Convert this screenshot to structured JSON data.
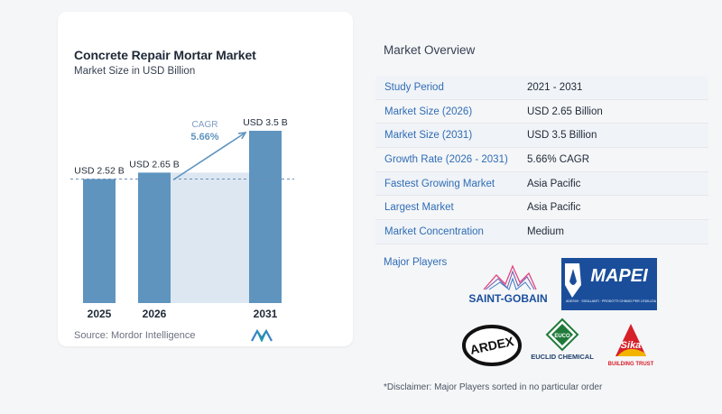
{
  "chart": {
    "title": "Concrete Repair Mortar Market",
    "subtitle": "Market Size in USD Billion",
    "source": "Source:  Mordor Intelligence",
    "cagr_label": "CAGR",
    "cagr_value": "5.66%"
  },
  "chart_data": {
    "type": "bar",
    "title": "Concrete Repair Mortar Market",
    "subtitle": "Market Size in USD Billion",
    "categories": [
      "2025",
      "2026",
      "2031"
    ],
    "values": [
      2.52,
      2.65,
      3.5
    ],
    "data_labels": [
      "USD 2.52 B",
      "USD 2.65 B",
      "USD 3.5 B"
    ],
    "ylim": [
      0,
      3.5
    ],
    "colors": {
      "bar": "#5f94bf",
      "shade": "#dde7f1",
      "arrow": "#5f94bf",
      "cagr": "#5f94bf"
    },
    "annotations": [
      {
        "text": "CAGR 5.66%"
      }
    ],
    "grid": false
  },
  "overview": {
    "title": "Market Overview",
    "rows": [
      {
        "key": "Study Period",
        "value": "2021 - 2031"
      },
      {
        "key": "Market Size (2026)",
        "value": "USD 2.65 Billion"
      },
      {
        "key": "Market Size (2031)",
        "value": "USD 3.5 Billion"
      },
      {
        "key": "Growth Rate (2026 - 2031)",
        "value": "5.66% CAGR"
      },
      {
        "key": "Fastest Growing Market",
        "value": "Asia Pacific"
      },
      {
        "key": "Largest Market",
        "value": "Asia Pacific"
      },
      {
        "key": "Market Concentration",
        "value": "Medium"
      }
    ]
  },
  "players": {
    "title": "Major Players",
    "saint_gobain": "SAINT-GOBAIN",
    "mapei": "MAPEI",
    "mapei_tagline": "ADESIVI · SIGILLANTI · PRODOTTI CHIMICI PER L'EDILIZIA",
    "ardex": "ARDEX",
    "euclid": "EUCLID CHEMICAL",
    "euclid_mark": "EUCO",
    "sika": "Sika",
    "sika_tagline": "BUILDING TRUST"
  },
  "disclaimer": "*Disclaimer: Major Players sorted in no particular order",
  "colors": {
    "accent": "#2f6db5",
    "brand_blue": "#1a4e9b",
    "red": "#d6202a",
    "green": "#1f7a3a"
  }
}
